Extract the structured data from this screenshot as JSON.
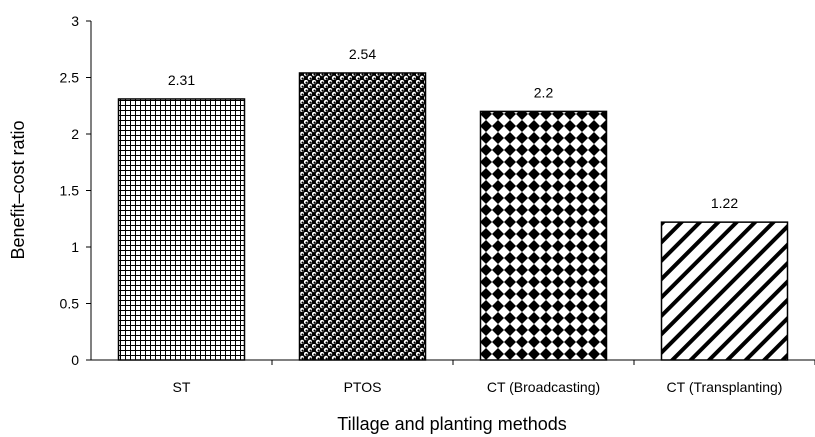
{
  "chart_data": {
    "type": "bar",
    "categories": [
      "ST",
      "PTOS",
      "CT (Broadcasting)",
      "CT (Transplanting)"
    ],
    "values": [
      2.31,
      2.54,
      2.2,
      1.22
    ],
    "data_labels": [
      "2.31",
      "2.54",
      "2.2",
      "1.22"
    ],
    "xlabel": "Tillage and planting methods",
    "ylabel": "Benefit–cost  ratio",
    "ylim": [
      0,
      3
    ],
    "yticks": [
      "0",
      "0.5",
      "1",
      "1.5",
      "2",
      "2.5",
      "3"
    ],
    "grid": false,
    "legend": "none",
    "bar_patterns": [
      "grid",
      "dots",
      "diamonds",
      "diagonal-stripes"
    ],
    "colors": {
      "bar_fill": "#ffffff",
      "pattern_ink": "#000000",
      "axis": "#000000"
    }
  }
}
